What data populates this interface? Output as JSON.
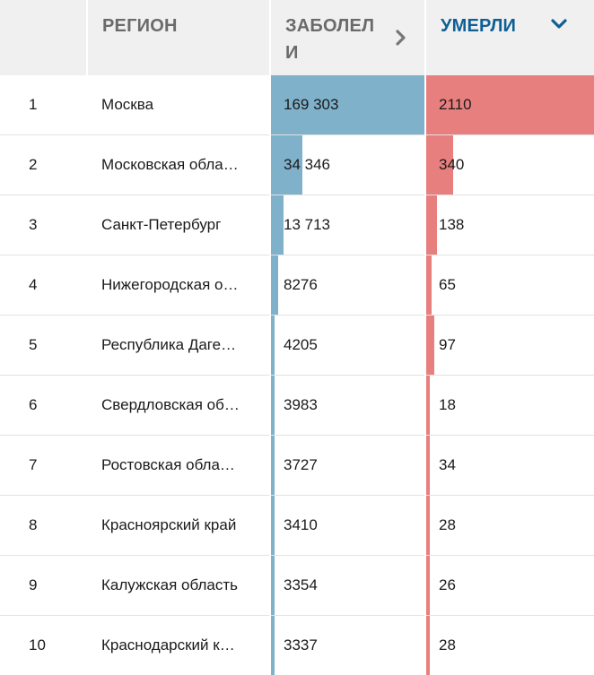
{
  "table": {
    "headers": {
      "region": "РЕГИОН",
      "cases": "ЗАБОЛЕЛИ",
      "deaths": "УМЕРЛИ"
    },
    "sort_column": "deaths",
    "icons": {
      "cases_sort": "chevron-right-icon",
      "deaths_sort": "chevron-down-icon"
    },
    "colors": {
      "cases_bar": "#7fb1cb",
      "deaths_bar": "#e87f7f",
      "active_header": "#0e5f94"
    },
    "rows": [
      {
        "rank": "1",
        "region": "Москва",
        "cases": "169 303",
        "deaths": "2110",
        "cases_share": 1.0,
        "deaths_share": 1.0
      },
      {
        "rank": "2",
        "region": "Московская обла…",
        "cases": "34 346",
        "deaths": "340",
        "cases_share": 0.203,
        "deaths_share": 0.161
      },
      {
        "rank": "3",
        "region": "Санкт-Петербург",
        "cases": "13 713",
        "deaths": "138",
        "cases_share": 0.081,
        "deaths_share": 0.065
      },
      {
        "rank": "4",
        "region": "Нижегородская о…",
        "cases": "8276",
        "deaths": "65",
        "cases_share": 0.049,
        "deaths_share": 0.031
      },
      {
        "rank": "5",
        "region": "Республика Даге…",
        "cases": "4205",
        "deaths": "97",
        "cases_share": 0.025,
        "deaths_share": 0.046
      },
      {
        "rank": "6",
        "region": "Свердловская об…",
        "cases": "3983",
        "deaths": "18",
        "cases_share": 0.024,
        "deaths_share": 0.009
      },
      {
        "rank": "7",
        "region": "Ростовская обла…",
        "cases": "3727",
        "deaths": "34",
        "cases_share": 0.022,
        "deaths_share": 0.016
      },
      {
        "rank": "8",
        "region": "Красноярский край",
        "cases": "3410",
        "deaths": "28",
        "cases_share": 0.02,
        "deaths_share": 0.013
      },
      {
        "rank": "9",
        "region": "Калужская область",
        "cases": "3354",
        "deaths": "26",
        "cases_share": 0.02,
        "deaths_share": 0.012
      },
      {
        "rank": "10",
        "region": "Краснодарский к…",
        "cases": "3337",
        "deaths": "28",
        "cases_share": 0.02,
        "deaths_share": 0.013
      }
    ]
  }
}
